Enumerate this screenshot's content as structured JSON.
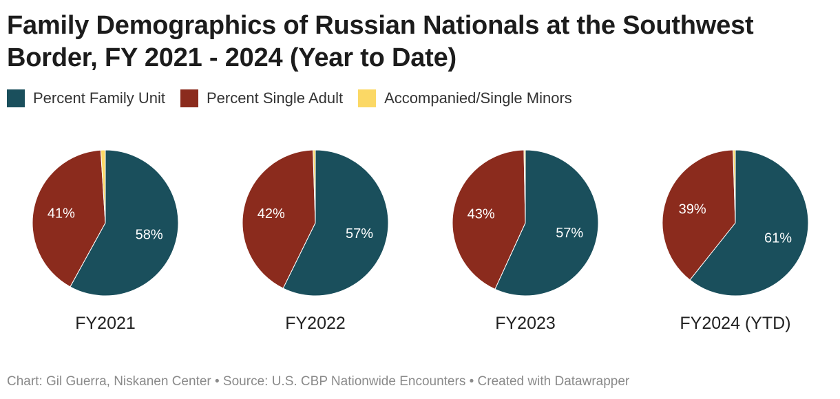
{
  "title": "Family Demographics of Russian Nationals at the Southwest Border, FY 2021 - 2024 (Year to Date)",
  "legend": [
    {
      "label": "Percent Family Unit",
      "color": "#1a4f5c"
    },
    {
      "label": "Percent Single Adult",
      "color": "#8b2b1d"
    },
    {
      "label": "Accompanied/Single Minors",
      "color": "#fbd865"
    }
  ],
  "footer": "Chart: Gil Guerra, Niskanen Center • Source: U.S. CBP Nationwide Encounters • Created with Datawrapper",
  "chart_data": {
    "type": "pie",
    "series_names": [
      "Percent Family Unit",
      "Percent Single Adult",
      "Accompanied/Single Minors"
    ],
    "colors": [
      "#1a4f5c",
      "#8b2b1d",
      "#fbd865"
    ],
    "charts": [
      {
        "label": "FY2021",
        "values": [
          58,
          41,
          1
        ],
        "value_labels": [
          "58%",
          "41%",
          ""
        ]
      },
      {
        "label": "FY2022",
        "values": [
          57,
          42,
          0.5
        ],
        "value_labels": [
          "57%",
          "42%",
          ""
        ]
      },
      {
        "label": "FY2023",
        "values": [
          57,
          43,
          0.3
        ],
        "value_labels": [
          "57%",
          "43%",
          ""
        ]
      },
      {
        "label": "FY2024 (YTD)",
        "values": [
          61,
          39,
          0.5
        ],
        "value_labels": [
          "61%",
          "39%",
          ""
        ]
      }
    ]
  }
}
